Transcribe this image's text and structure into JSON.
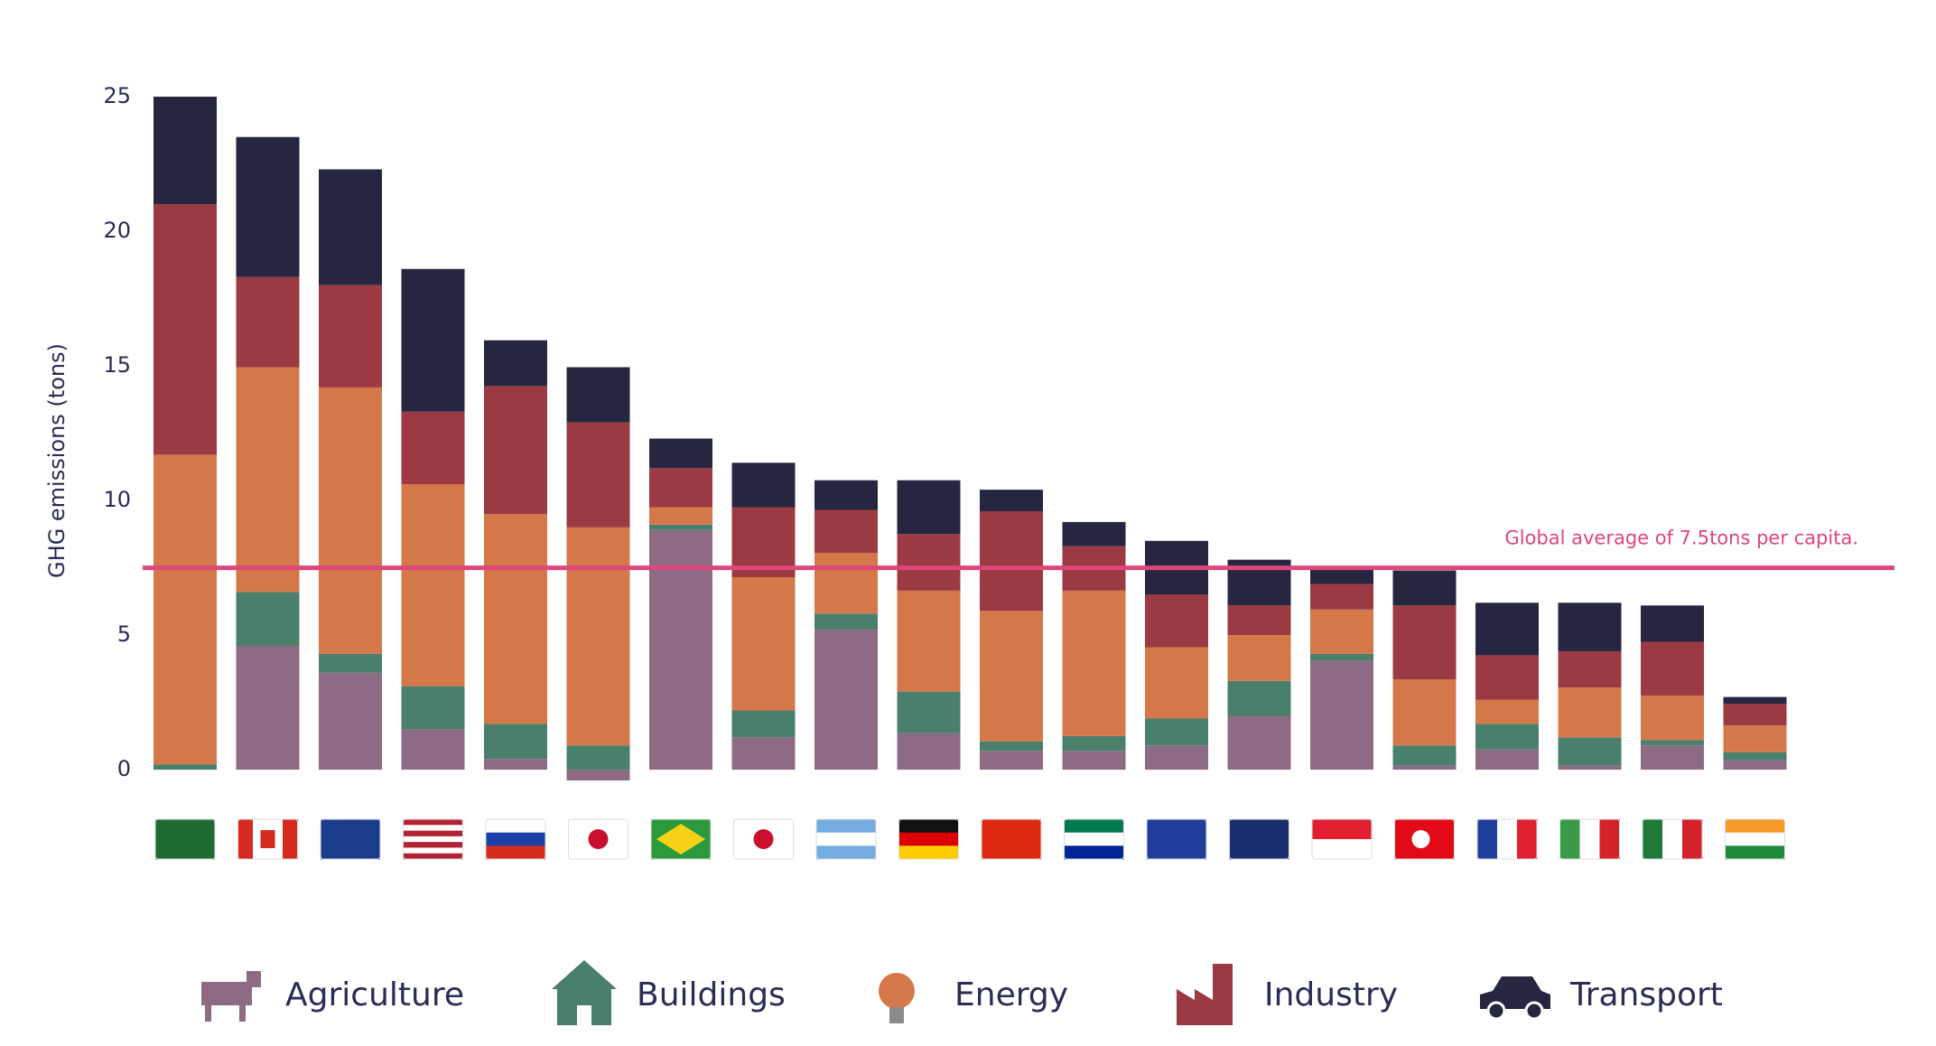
{
  "chart_data": {
    "type": "stacked_bar",
    "y_axis_label": "GHG emissions (tons)",
    "categories": [
      null,
      null,
      null,
      null,
      null,
      null,
      null,
      null,
      null,
      null,
      null,
      null,
      null,
      null,
      null,
      null,
      null,
      null,
      null,
      null
    ],
    "series": [
      {
        "name": "Agriculture",
        "color": "#8e6b85",
        "values": [
          0,
          4.6,
          3.6,
          1.5,
          0.4,
          -0.4,
          8.9,
          1.2,
          5.2,
          1.35,
          0.7,
          0.7,
          0.9,
          2.0,
          4.05,
          0.15,
          0.75,
          0.15,
          0.9,
          0.35
        ]
      },
      {
        "name": "Buildings",
        "color": "#4a7f6b",
        "values": [
          0.2,
          2.0,
          0.7,
          1.6,
          1.3,
          0.9,
          0.2,
          1.0,
          0.6,
          1.55,
          0.35,
          0.55,
          1.0,
          1.3,
          0.25,
          0.75,
          0.95,
          1.05,
          0.2,
          0.3
        ]
      },
      {
        "name": "Energy",
        "color": "#d4784a",
        "values": [
          11.5,
          8.35,
          9.9,
          7.5,
          7.8,
          8.1,
          0.65,
          4.95,
          2.25,
          3.75,
          4.85,
          5.4,
          2.65,
          1.7,
          1.65,
          2.45,
          0.9,
          1.85,
          1.65,
          1.0
        ]
      },
      {
        "name": "Industry",
        "color": "#9b3a43",
        "values": [
          9.3,
          3.35,
          3.8,
          2.7,
          4.75,
          3.9,
          1.45,
          2.6,
          1.6,
          2.1,
          3.7,
          1.65,
          1.95,
          1.1,
          0.95,
          2.75,
          1.65,
          1.35,
          2.0,
          0.8
        ]
      },
      {
        "name": "Transport",
        "color": "#262640",
        "values": [
          4.0,
          5.2,
          4.3,
          5.3,
          1.7,
          2.05,
          1.1,
          1.65,
          1.1,
          2.0,
          0.8,
          0.9,
          2.0,
          1.7,
          0.6,
          1.3,
          1.95,
          1.8,
          1.35,
          0.25
        ]
      }
    ],
    "ylim": [
      -0.5,
      25
    ],
    "yticks": [
      0,
      5,
      10,
      15,
      20,
      25
    ],
    "grid": true,
    "reference_line": {
      "value": 7.5,
      "label": "Global average of 7.5tons per capita.",
      "color": "#e0457b"
    }
  }
}
